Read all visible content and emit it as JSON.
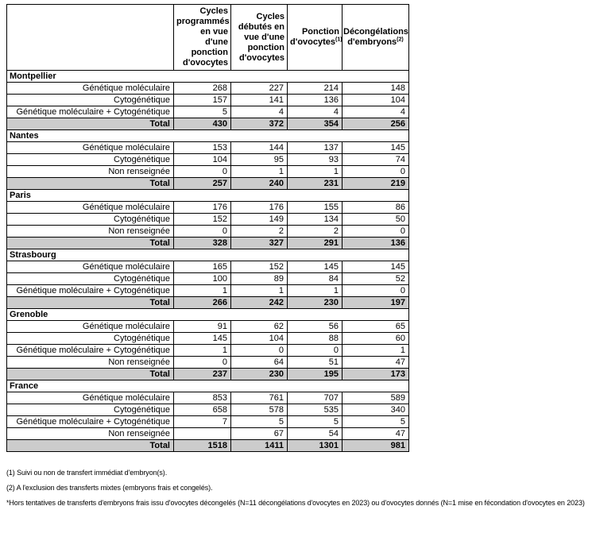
{
  "table": {
    "corner_label": "",
    "columns": [
      {
        "label": "Cycles programmés en vue d'une ponction d'ovocytes",
        "sup": ""
      },
      {
        "label": "Cycles débutés en vue d'une ponction d'ovocytes",
        "sup": ""
      },
      {
        "label": "Ponction d'ovocytes",
        "sup": "(1)"
      },
      {
        "label": "Décongélations d'embryons",
        "sup": "(2)"
      }
    ],
    "sections": [
      {
        "name": "Montpellier",
        "rows": [
          {
            "label": "Génétique moléculaire",
            "values": [
              "268",
              "227",
              "214",
              "148"
            ]
          },
          {
            "label": "Cytogénétique",
            "values": [
              "157",
              "141",
              "136",
              "104"
            ]
          },
          {
            "label": "Génétique moléculaire + Cytogénétique",
            "values": [
              "5",
              "4",
              "4",
              "4"
            ]
          }
        ],
        "total": {
          "label": "Total",
          "values": [
            "430",
            "372",
            "354",
            "256"
          ]
        }
      },
      {
        "name": "Nantes",
        "rows": [
          {
            "label": "Génétique moléculaire",
            "values": [
              "153",
              "144",
              "137",
              "145"
            ]
          },
          {
            "label": "Cytogénétique",
            "values": [
              "104",
              "95",
              "93",
              "74"
            ]
          },
          {
            "label": "Non renseignée",
            "values": [
              "0",
              "1",
              "1",
              "0"
            ]
          }
        ],
        "total": {
          "label": "Total",
          "values": [
            "257",
            "240",
            "231",
            "219"
          ]
        }
      },
      {
        "name": "Paris",
        "rows": [
          {
            "label": "Génétique moléculaire",
            "values": [
              "176",
              "176",
              "155",
              "86"
            ]
          },
          {
            "label": "Cytogénétique",
            "values": [
              "152",
              "149",
              "134",
              "50"
            ]
          },
          {
            "label": "Non renseignée",
            "values": [
              "0",
              "2",
              "2",
              "0"
            ]
          }
        ],
        "total": {
          "label": "Total",
          "values": [
            "328",
            "327",
            "291",
            "136"
          ]
        }
      },
      {
        "name": "Strasbourg",
        "rows": [
          {
            "label": "Génétique moléculaire",
            "values": [
              "165",
              "152",
              "145",
              "145"
            ]
          },
          {
            "label": "Cytogénétique",
            "values": [
              "100",
              "89",
              "84",
              "52"
            ]
          },
          {
            "label": "Génétique moléculaire + Cytogénétique",
            "values": [
              "1",
              "1",
              "1",
              "0"
            ]
          }
        ],
        "total": {
          "label": "Total",
          "values": [
            "266",
            "242",
            "230",
            "197"
          ]
        }
      },
      {
        "name": "Grenoble",
        "rows": [
          {
            "label": "Génétique moléculaire",
            "values": [
              "91",
              "62",
              "56",
              "65"
            ]
          },
          {
            "label": "Cytogénétique",
            "values": [
              "145",
              "104",
              "88",
              "60"
            ]
          },
          {
            "label": "Génétique moléculaire + Cytogénétique",
            "values": [
              "1",
              "0",
              "0",
              "1"
            ]
          },
          {
            "label": "Non renseignée",
            "values": [
              "0",
              "64",
              "51",
              "47"
            ]
          }
        ],
        "total": {
          "label": "Total",
          "values": [
            "237",
            "230",
            "195",
            "173"
          ]
        }
      },
      {
        "name": "France",
        "rows": [
          {
            "label": "Génétique moléculaire",
            "values": [
              "853",
              "761",
              "707",
              "589"
            ]
          },
          {
            "label": "Cytogénétique",
            "values": [
              "658",
              "578",
              "535",
              "340"
            ]
          },
          {
            "label": "Génétique moléculaire + Cytogénétique",
            "values": [
              "7",
              "5",
              "5",
              "5"
            ]
          },
          {
            "label": "Non renseignée",
            "values": [
              "",
              "67",
              "54",
              "47"
            ]
          }
        ],
        "total": {
          "label": "Total",
          "values": [
            "1518",
            "1411",
            "1301",
            "981"
          ]
        }
      }
    ],
    "total_row_background": "#cccccc",
    "border_color": "#000000"
  },
  "footnotes": [
    "(1) Suivi ou non de transfert immédiat d'embryon(s).",
    "(2) A l'exclusion des transferts mixtes (embryons frais et congelés).",
    "*Hors tentatives de transferts d'embryons frais issu d'ovocytes décongelés (N=11 décongélations d'ovocytes en 2023) ou d'ovocytes donnés (N=1 mise en fécondation d'ovocytes en 2023)"
  ]
}
